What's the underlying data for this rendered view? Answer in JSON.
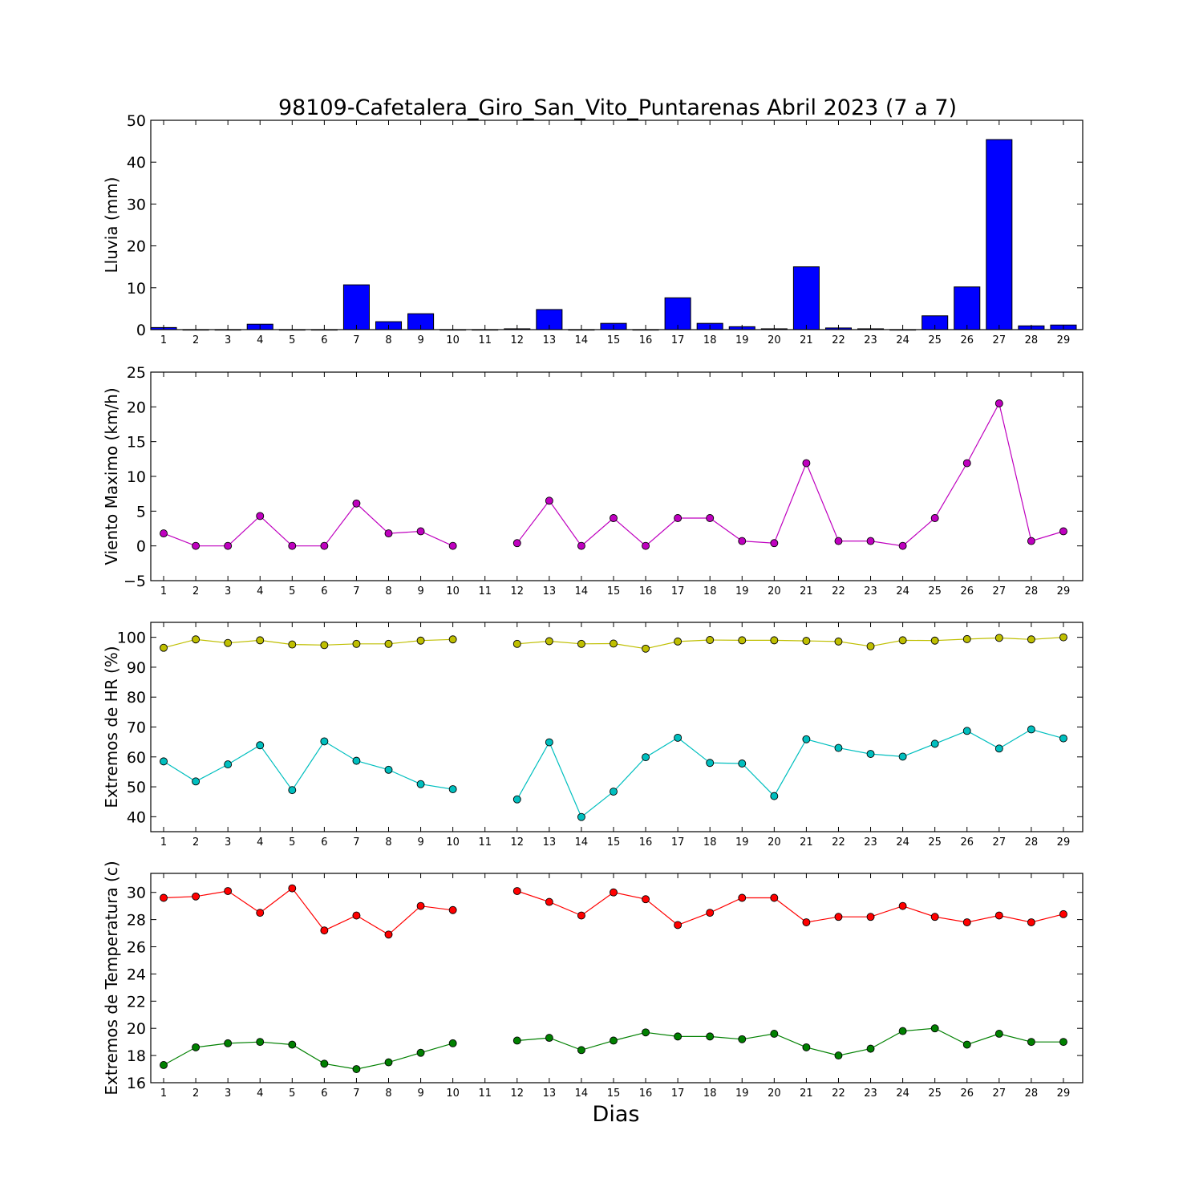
{
  "title": "98109-Cafetalera_Giro_San_Vito_Puntarenas Abril 2023  (7 a 7)",
  "xlabel": "Dias",
  "chart_data": [
    {
      "type": "bar",
      "ylabel": "Lluvia (mm)",
      "ylim": [
        0,
        50
      ],
      "yticks": [
        0,
        10,
        20,
        30,
        40,
        50
      ],
      "categories": [
        1,
        2,
        3,
        4,
        5,
        6,
        7,
        8,
        9,
        10,
        11,
        12,
        13,
        14,
        15,
        16,
        17,
        18,
        19,
        20,
        21,
        22,
        23,
        24,
        25,
        26,
        27,
        28,
        29
      ],
      "series": [
        {
          "color": "#0000ff",
          "values": [
            0.5,
            0,
            0,
            1.3,
            0,
            0,
            10.7,
            1.9,
            3.8,
            0,
            0,
            0.2,
            4.8,
            0,
            1.5,
            0,
            7.6,
            1.5,
            0.7,
            0.2,
            15.0,
            0.4,
            0.2,
            0,
            3.3,
            10.2,
            45.4,
            0.9,
            1.1
          ]
        }
      ]
    },
    {
      "type": "line",
      "ylabel": "Viento Maximo (km/h)",
      "ylim": [
        -5,
        25
      ],
      "yticks": [
        -5,
        0,
        5,
        10,
        15,
        20,
        25
      ],
      "x": [
        1,
        2,
        3,
        4,
        5,
        6,
        7,
        8,
        9,
        10,
        11,
        12,
        13,
        14,
        15,
        16,
        17,
        18,
        19,
        20,
        21,
        22,
        23,
        24,
        25,
        26,
        27,
        28,
        29
      ],
      "series": [
        {
          "color": "#bf00bf",
          "values": [
            1.8,
            0,
            0,
            4.3,
            0,
            0,
            6.1,
            1.8,
            2.1,
            0,
            null,
            0.4,
            6.5,
            0,
            4.0,
            0,
            4.0,
            4.0,
            0.7,
            0.4,
            11.9,
            0.7,
            0.7,
            0,
            4.0,
            11.9,
            20.5,
            0.7,
            2.1
          ]
        }
      ]
    },
    {
      "type": "line",
      "ylabel": "Extremos de HR (%)",
      "ylim": [
        35,
        105
      ],
      "yticks": [
        40,
        50,
        60,
        70,
        80,
        90,
        100
      ],
      "x": [
        1,
        2,
        3,
        4,
        5,
        6,
        7,
        8,
        9,
        10,
        11,
        12,
        13,
        14,
        15,
        16,
        17,
        18,
        19,
        20,
        21,
        22,
        23,
        24,
        25,
        26,
        27,
        28,
        29
      ],
      "series": [
        {
          "color": "#bfbf00",
          "values": [
            96.5,
            99.3,
            98.1,
            99.0,
            97.6,
            97.4,
            97.8,
            97.8,
            98.9,
            99.3,
            null,
            97.8,
            98.7,
            97.8,
            97.9,
            96.2,
            98.6,
            99.1,
            99.0,
            99.0,
            98.8,
            98.6,
            97.0,
            99.0,
            98.9,
            99.4,
            99.8,
            99.3,
            100
          ]
        },
        {
          "color": "#00bfbf",
          "values": [
            58.5,
            51.8,
            57.5,
            63.9,
            48.9,
            65.2,
            58.7,
            55.7,
            50.9,
            49.2,
            null,
            45.8,
            64.9,
            39.9,
            48.4,
            59.9,
            66.4,
            58.0,
            57.8,
            46.9,
            65.9,
            63.0,
            61.0,
            60.1,
            64.4,
            68.7,
            62.8,
            69.2,
            66.2
          ]
        }
      ]
    },
    {
      "type": "line",
      "ylabel": "Extremos de Temperatura (c)",
      "ylim": [
        16,
        31.4
      ],
      "yticks": [
        16,
        18,
        20,
        22,
        24,
        26,
        28,
        30
      ],
      "x": [
        1,
        2,
        3,
        4,
        5,
        6,
        7,
        8,
        9,
        10,
        11,
        12,
        13,
        14,
        15,
        16,
        17,
        18,
        19,
        20,
        21,
        22,
        23,
        24,
        25,
        26,
        27,
        28,
        29
      ],
      "series": [
        {
          "color": "#ff0000",
          "values": [
            29.6,
            29.7,
            30.1,
            28.5,
            30.3,
            27.2,
            28.3,
            26.9,
            29.0,
            28.7,
            null,
            30.1,
            29.3,
            28.3,
            30.0,
            29.5,
            27.6,
            28.5,
            29.6,
            29.6,
            27.8,
            28.2,
            28.2,
            29.0,
            28.2,
            27.8,
            28.3,
            27.8,
            28.4
          ]
        },
        {
          "color": "#008000",
          "values": [
            17.3,
            18.6,
            18.9,
            19.0,
            18.8,
            17.4,
            17.0,
            17.5,
            18.2,
            18.9,
            null,
            19.1,
            19.3,
            18.4,
            19.1,
            19.7,
            19.4,
            19.4,
            19.2,
            19.6,
            18.6,
            18.0,
            18.5,
            19.8,
            20.0,
            18.8,
            19.6,
            19.0,
            19.0
          ]
        }
      ]
    }
  ]
}
